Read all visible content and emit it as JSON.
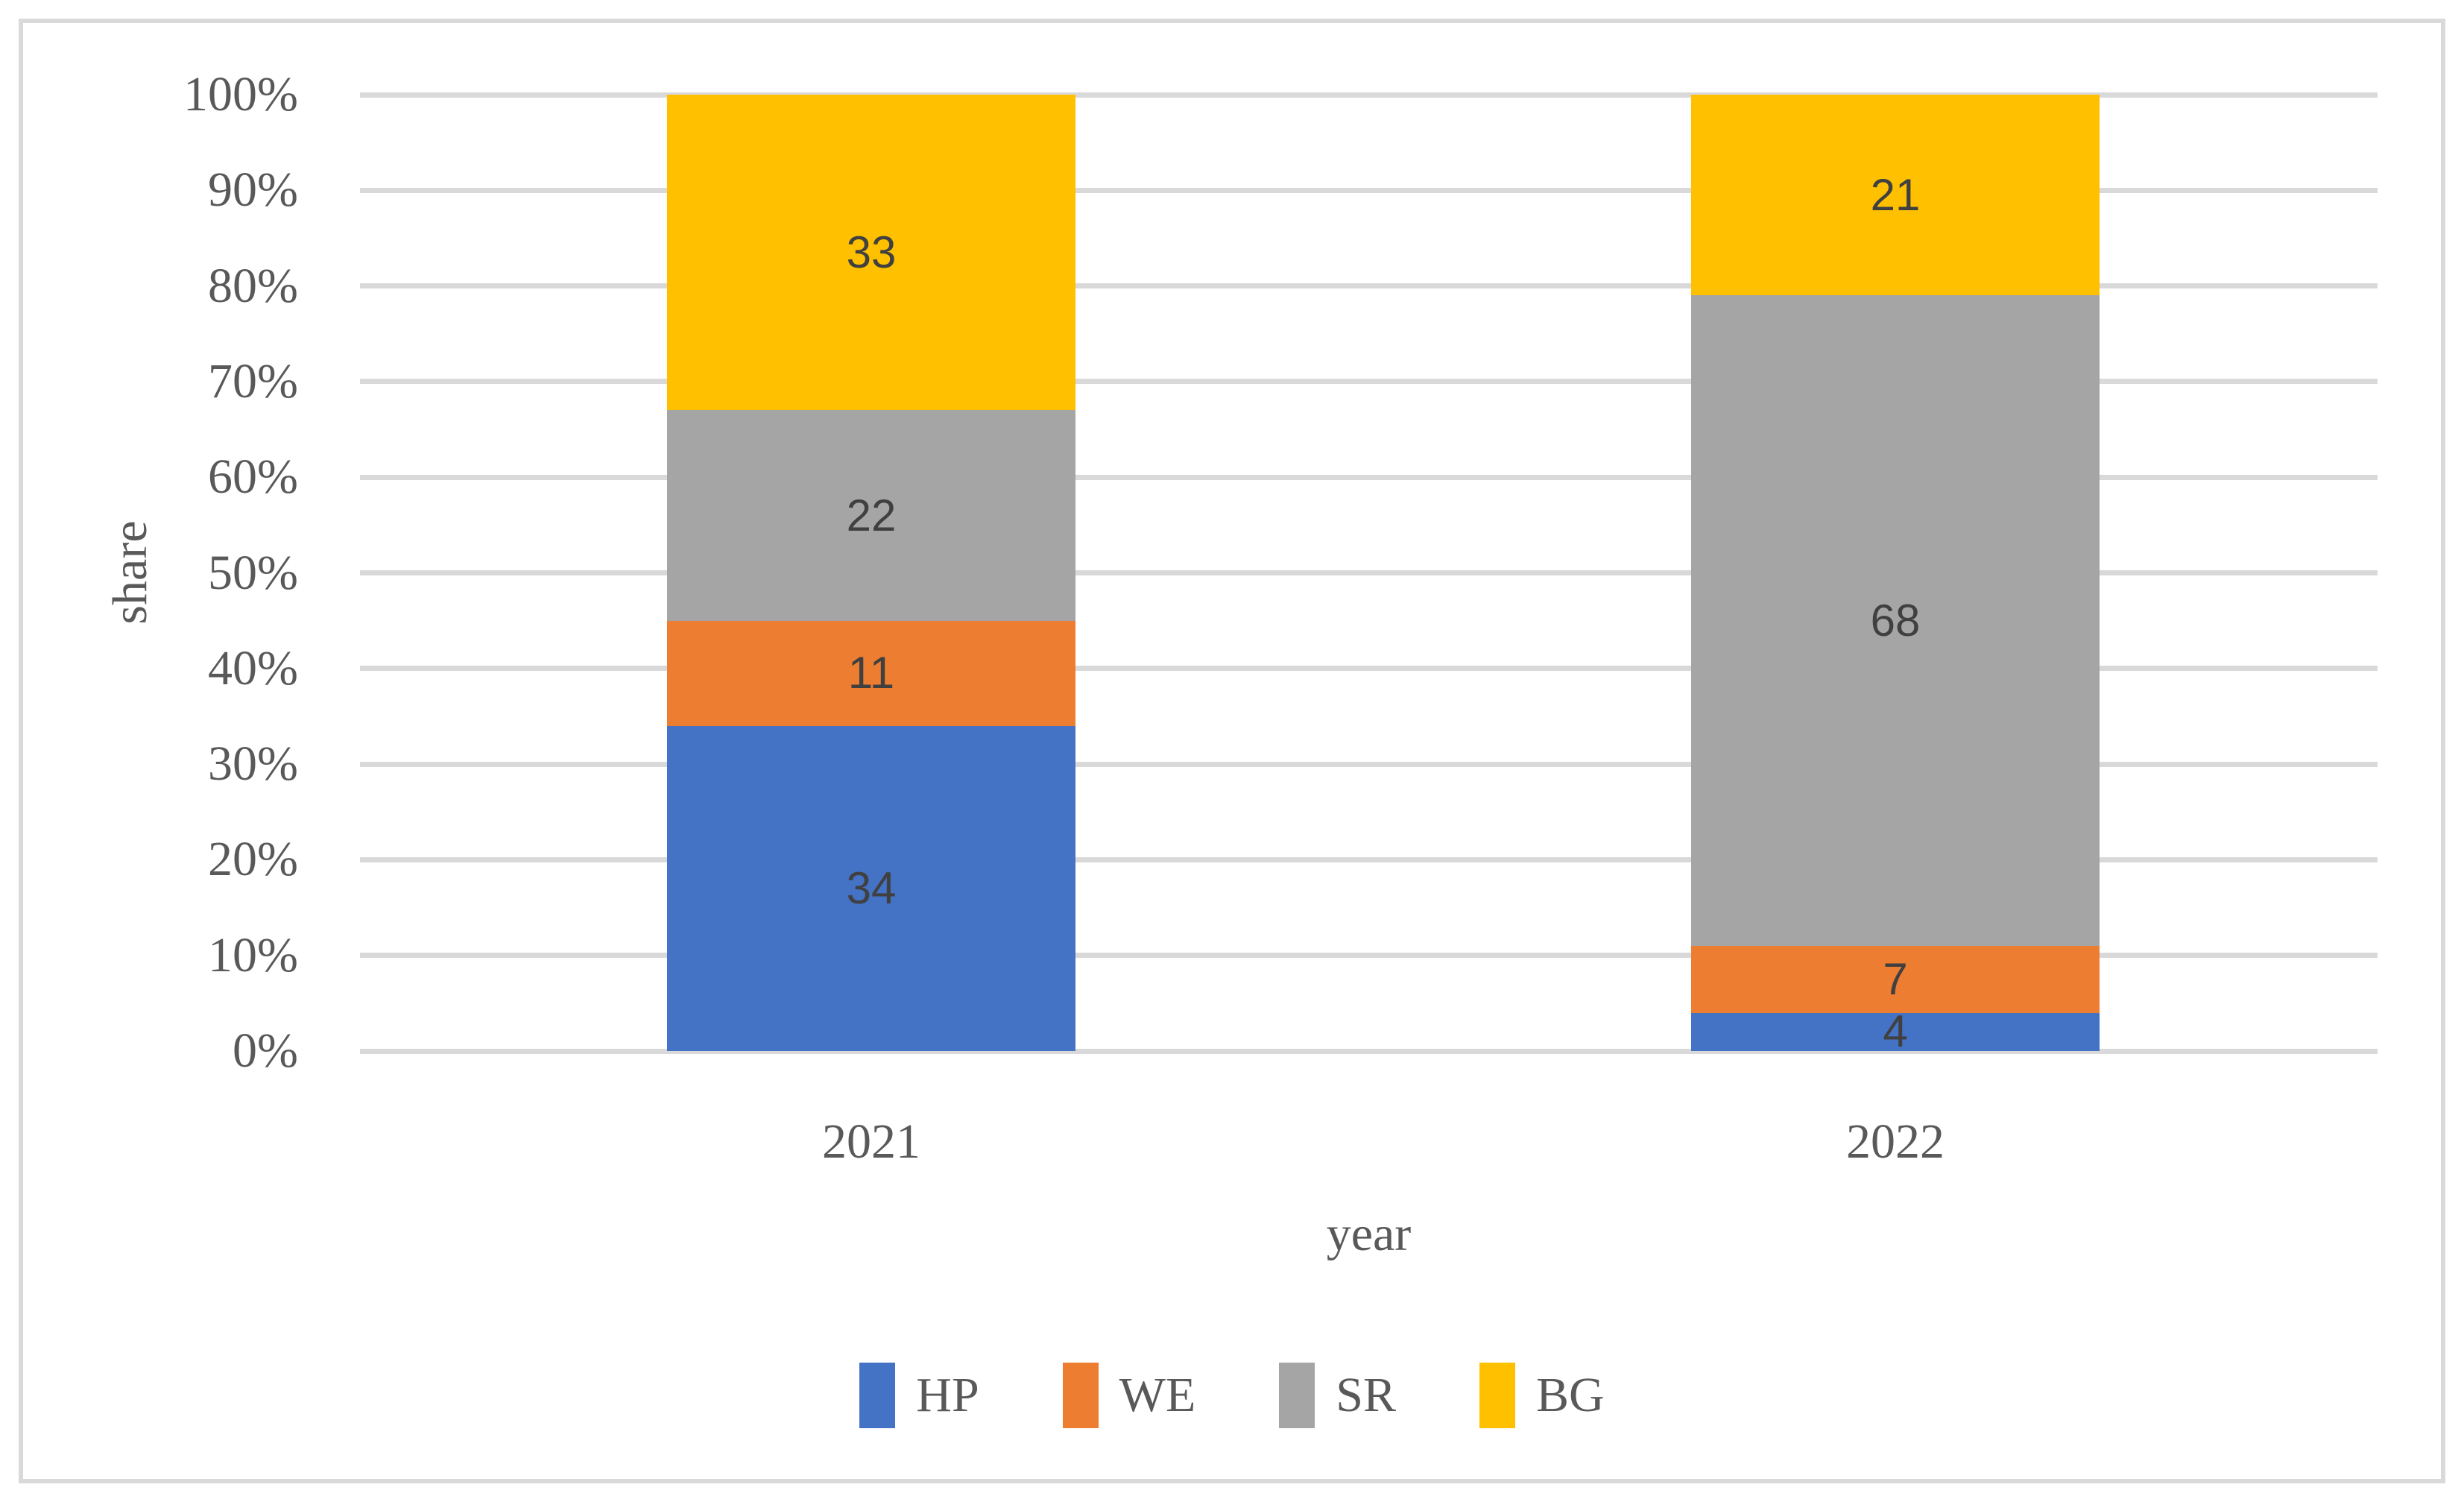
{
  "chart_data": {
    "type": "bar",
    "variant": "stacked-100-percent-column",
    "title": "",
    "xlabel": "year",
    "ylabel": "share",
    "categories": [
      "2021",
      "2022"
    ],
    "series": [
      {
        "name": "HP",
        "color": "#4472C4",
        "values": [
          34,
          4
        ]
      },
      {
        "name": "WE",
        "color": "#ED7D31",
        "values": [
          11,
          7
        ]
      },
      {
        "name": "SR",
        "color": "#A5A5A5",
        "values": [
          22,
          68
        ]
      },
      {
        "name": "BG",
        "color": "#FFC000",
        "values": [
          33,
          21
        ]
      }
    ],
    "y_ticks": [
      "0%",
      "10%",
      "20%",
      "30%",
      "40%",
      "50%",
      "60%",
      "70%",
      "80%",
      "90%",
      "100%"
    ],
    "ylim": [
      0,
      100
    ],
    "grid": "horizontal",
    "gridline_color": "#D9D9D9",
    "axis_text_color": "#595959",
    "data_label_color": "#404040",
    "legend_position": "bottom",
    "data_labels_visible": true,
    "frame_border_color": "#D9D9D9"
  }
}
